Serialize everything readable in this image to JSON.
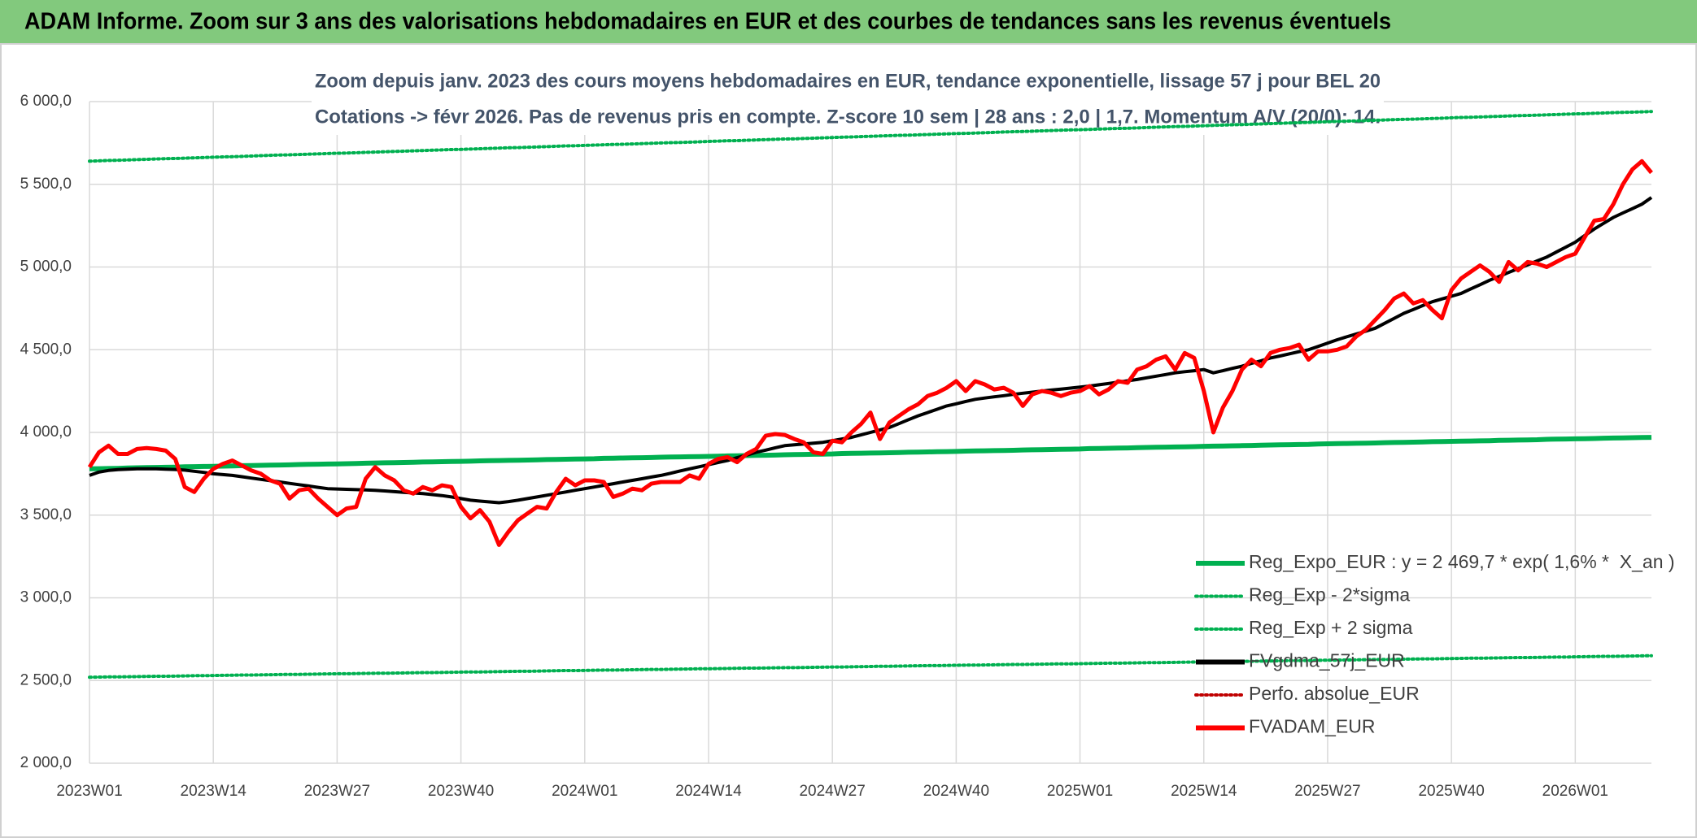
{
  "chart_data": {
    "type": "line",
    "header": "ADAM Informe. Zoom sur 3 ans des valorisations hebdomadaires en EUR et des courbes de tendances sans les revenus éventuels",
    "title": "Zoom depuis janv. 2023 des cours moyens hebdomadaires en EUR, tendance exponentielle, lissage 57 j pour BEL 20",
    "subtitle": "Cotations -> févr 2026. Pas de revenus pris en compte. Z-score 10 sem | 28 ans : 2,0 | 1,7. Momentum A/V (20/0): 14.",
    "categories": [
      "2023W01",
      null,
      null,
      null,
      null,
      null,
      null,
      null,
      null,
      null,
      null,
      null,
      null,
      "2023W14",
      null,
      null,
      null,
      null,
      null,
      null,
      null,
      null,
      null,
      null,
      null,
      null,
      "2023W27",
      null,
      null,
      null,
      null,
      null,
      null,
      null,
      null,
      null,
      null,
      null,
      null,
      "2023W40",
      null,
      null,
      null,
      null,
      null,
      null,
      null,
      null,
      null,
      null,
      null,
      null,
      "2024W01",
      null,
      null,
      null,
      null,
      null,
      null,
      null,
      null,
      null,
      null,
      null,
      null,
      "2024W14",
      null,
      null,
      null,
      null,
      null,
      null,
      null,
      null,
      null,
      null,
      null,
      null,
      "2024W27",
      null,
      null,
      null,
      null,
      null,
      null,
      null,
      null,
      null,
      null,
      null,
      null,
      "2024W40",
      null,
      null,
      null,
      null,
      null,
      null,
      null,
      null,
      null,
      null,
      null,
      null,
      "2025W01",
      null,
      null,
      null,
      null,
      null,
      null,
      null,
      null,
      null,
      null,
      null,
      null,
      "2025W14",
      null,
      null,
      null,
      null,
      null,
      null,
      null,
      null,
      null,
      null,
      null,
      null,
      "2025W27",
      null,
      null,
      null,
      null,
      null,
      null,
      null,
      null,
      null,
      null,
      null,
      null,
      "2025W40",
      null,
      null,
      null,
      null,
      null,
      null,
      null,
      null,
      null,
      null,
      null,
      null,
      "2026W01",
      null,
      null,
      null,
      null,
      null,
      null,
      null,
      null
    ],
    "ylim": [
      2000,
      6000
    ],
    "yticks": [
      {
        "value": 2000,
        "label": "2 000,0"
      },
      {
        "value": 2500,
        "label": "2 500,0"
      },
      {
        "value": 3000,
        "label": "3 000,0"
      },
      {
        "value": 3500,
        "label": "3 500,0"
      },
      {
        "value": 4000,
        "label": "4 000,0"
      },
      {
        "value": 4500,
        "label": "4 500,0"
      },
      {
        "value": 5000,
        "label": "5 000,0"
      },
      {
        "value": 5500,
        "label": "5 500,0"
      },
      {
        "value": 6000,
        "label": "6 000,0"
      }
    ],
    "grid": true,
    "legend": "lower right",
    "series": [
      {
        "name": "Reg_Expo_EUR : y = 2 469,7 * exp( 1,6% *  X_an )",
        "color": "#00b050",
        "style": "solid",
        "values": [
          3780,
          3781,
          3782,
          3783,
          3785,
          3786,
          3787,
          3788,
          3789,
          3790,
          3792,
          3793,
          3794,
          3795,
          3796,
          3797,
          3799,
          3800,
          3801,
          3802,
          3803,
          3804,
          3806,
          3807,
          3808,
          3809,
          3810,
          3811,
          3812,
          3814,
          3815,
          3816,
          3817,
          3818,
          3819,
          3821,
          3822,
          3823,
          3824,
          3825,
          3826,
          3828,
          3829,
          3830,
          3831,
          3832,
          3833,
          3834,
          3836,
          3837,
          3838,
          3839,
          3840,
          3841,
          3843,
          3844,
          3845,
          3846,
          3847,
          3848,
          3850,
          3851,
          3852,
          3853,
          3854,
          3855,
          3856,
          3858,
          3859,
          3860,
          3861,
          3862,
          3863,
          3865,
          3866,
          3867,
          3868,
          3869,
          3870,
          3872,
          3873,
          3874,
          3875,
          3876,
          3877,
          3878,
          3880,
          3881,
          3882,
          3883,
          3884,
          3885,
          3887,
          3888,
          3889,
          3890,
          3891,
          3892,
          3894,
          3895,
          3896,
          3897,
          3898,
          3899,
          3900,
          3902,
          3903,
          3904,
          3905,
          3906,
          3908,
          3909,
          3910,
          3911,
          3912,
          3913,
          3914,
          3916,
          3917,
          3918,
          3919,
          3920,
          3921,
          3923,
          3924,
          3925,
          3926,
          3927,
          3928,
          3930,
          3931,
          3932,
          3933,
          3934,
          3935,
          3936,
          3938,
          3939,
          3940,
          3941,
          3942,
          3944,
          3945,
          3946,
          3947,
          3948,
          3949,
          3950,
          3952,
          3953,
          3954,
          3955,
          3956,
          3958,
          3959,
          3960,
          3961,
          3962,
          3963,
          3965,
          3966,
          3967,
          3968,
          3969,
          3970
        ]
      },
      {
        "name": "Reg_Exp - 2*sigma",
        "color": "#00b050",
        "style": "dotted",
        "values": [
          2520,
          2521,
          2522,
          2522,
          2523,
          2524,
          2525,
          2526,
          2526,
          2527,
          2528,
          2529,
          2529,
          2530,
          2531,
          2532,
          2533,
          2533,
          2534,
          2535,
          2536,
          2537,
          2537,
          2538,
          2539,
          2540,
          2541,
          2541,
          2542,
          2543,
          2544,
          2544,
          2545,
          2546,
          2547,
          2548,
          2548,
          2549,
          2550,
          2551,
          2552,
          2552,
          2553,
          2554,
          2555,
          2556,
          2556,
          2557,
          2558,
          2559,
          2560,
          2560,
          2561,
          2562,
          2563,
          2563,
          2564,
          2565,
          2566,
          2567,
          2567,
          2568,
          2569,
          2570,
          2571,
          2571,
          2572,
          2573,
          2574,
          2575,
          2575,
          2576,
          2577,
          2578,
          2578,
          2579,
          2580,
          2581,
          2582,
          2582,
          2583,
          2584,
          2585,
          2586,
          2586,
          2587,
          2588,
          2589,
          2590,
          2590,
          2591,
          2592,
          2593,
          2593,
          2594,
          2595,
          2596,
          2597,
          2597,
          2598,
          2599,
          2600,
          2601,
          2601,
          2602,
          2603,
          2604,
          2605,
          2605,
          2606,
          2607,
          2608,
          2608,
          2609,
          2610,
          2611,
          2612,
          2612,
          2613,
          2614,
          2615,
          2616,
          2616,
          2617,
          2618,
          2619,
          2620,
          2620,
          2621,
          2622,
          2623,
          2623,
          2624,
          2625,
          2626,
          2627,
          2627,
          2628,
          2629,
          2630,
          2631,
          2631,
          2632,
          2633,
          2634,
          2635,
          2635,
          2636,
          2637,
          2638,
          2639,
          2639,
          2640,
          2641,
          2642,
          2642,
          2643,
          2644,
          2645,
          2646,
          2646,
          2647,
          2648,
          2649,
          2650
        ]
      },
      {
        "name": "Reg_Exp + 2 sigma",
        "color": "#00b050",
        "style": "dotted",
        "values": [
          5640,
          5642,
          5644,
          5645,
          5647,
          5649,
          5651,
          5653,
          5655,
          5656,
          5658,
          5660,
          5662,
          5664,
          5666,
          5667,
          5669,
          5671,
          5673,
          5675,
          5677,
          5678,
          5680,
          5682,
          5684,
          5686,
          5688,
          5689,
          5691,
          5693,
          5695,
          5697,
          5699,
          5700,
          5702,
          5704,
          5706,
          5708,
          5710,
          5711,
          5713,
          5715,
          5717,
          5719,
          5721,
          5722,
          5724,
          5726,
          5728,
          5730,
          5732,
          5733,
          5735,
          5737,
          5739,
          5741,
          5742,
          5744,
          5746,
          5748,
          5750,
          5752,
          5753,
          5755,
          5757,
          5759,
          5761,
          5763,
          5764,
          5766,
          5768,
          5770,
          5772,
          5774,
          5775,
          5777,
          5779,
          5781,
          5783,
          5785,
          5786,
          5788,
          5790,
          5792,
          5794,
          5796,
          5797,
          5799,
          5801,
          5803,
          5805,
          5807,
          5808,
          5810,
          5812,
          5814,
          5816,
          5818,
          5819,
          5821,
          5823,
          5825,
          5827,
          5829,
          5830,
          5832,
          5834,
          5836,
          5838,
          5839,
          5841,
          5843,
          5845,
          5847,
          5849,
          5850,
          5852,
          5854,
          5856,
          5858,
          5860,
          5861,
          5863,
          5865,
          5867,
          5869,
          5871,
          5872,
          5874,
          5876,
          5878,
          5880,
          5882,
          5883,
          5885,
          5887,
          5889,
          5891,
          5893,
          5894,
          5896,
          5898,
          5900,
          5902,
          5904,
          5905,
          5907,
          5909,
          5911,
          5913,
          5915,
          5916,
          5918,
          5920,
          5922,
          5924,
          5926,
          5927,
          5929,
          5931,
          5933,
          5935,
          5936,
          5938,
          5940
        ]
      },
      {
        "name": "FVgdma_57j_EUR",
        "color": "#000000",
        "style": "solid",
        "values": [
          3740,
          3760,
          3770,
          3775,
          3778,
          3780,
          3780,
          3780,
          3778,
          3776,
          3772,
          3765,
          3758,
          3750,
          3745,
          3740,
          3732,
          3724,
          3716,
          3708,
          3700,
          3692,
          3684,
          3676,
          3668,
          3660,
          3658,
          3656,
          3654,
          3652,
          3650,
          3646,
          3642,
          3638,
          3634,
          3630,
          3624,
          3618,
          3610,
          3600,
          3590,
          3585,
          3580,
          3575,
          3582,
          3590,
          3600,
          3610,
          3620,
          3630,
          3640,
          3650,
          3660,
          3670,
          3680,
          3690,
          3700,
          3710,
          3720,
          3730,
          3740,
          3753,
          3767,
          3780,
          3792,
          3805,
          3818,
          3830,
          3847,
          3863,
          3880,
          3893,
          3907,
          3920,
          3925,
          3930,
          3935,
          3940,
          3950,
          3960,
          3970,
          3985,
          4000,
          4015,
          4030,
          4053,
          4077,
          4100,
          4120,
          4140,
          4160,
          4173,
          4187,
          4200,
          4208,
          4215,
          4222,
          4230,
          4237,
          4243,
          4250,
          4256,
          4262,
          4268,
          4274,
          4280,
          4288,
          4296,
          4304,
          4312,
          4320,
          4330,
          4340,
          4350,
          4360,
          4367,
          4373,
          4380,
          4360,
          4373,
          4387,
          4400,
          4417,
          4433,
          4450,
          4462,
          4475,
          4488,
          4500,
          4520,
          4540,
          4560,
          4578,
          4595,
          4612,
          4630,
          4660,
          4690,
          4720,
          4743,
          4767,
          4790,
          4807,
          4823,
          4840,
          4867,
          4893,
          4920,
          4943,
          4967,
          4990,
          5013,
          5037,
          5060,
          5090,
          5120,
          5150,
          5190,
          5230,
          5265,
          5300,
          5327,
          5353,
          5380,
          5420
        ]
      },
      {
        "name": "Perfo. absolue_EUR",
        "color": "#c00000",
        "style": "dotted",
        "values": [
          null,
          null,
          null,
          null,
          null,
          null,
          null,
          null,
          null,
          null,
          null,
          null,
          null,
          null,
          null,
          null,
          null,
          null,
          null,
          null,
          null,
          null,
          null,
          null,
          null,
          null,
          null,
          null,
          null,
          null,
          null,
          null,
          null,
          null,
          null,
          null,
          null,
          null,
          null,
          null,
          null,
          null,
          null,
          null,
          null,
          null,
          null,
          null,
          null,
          null,
          null,
          null,
          null,
          null,
          null,
          null,
          null,
          null,
          null,
          null,
          null,
          null,
          null,
          null,
          null,
          null,
          null,
          null,
          null,
          null,
          null,
          null,
          null,
          null,
          null,
          null,
          null,
          null,
          null,
          null,
          null,
          null,
          null,
          null,
          null,
          null,
          null,
          null,
          null,
          null,
          null,
          null,
          null,
          null,
          null,
          null,
          null,
          null,
          null,
          null,
          null,
          null,
          null,
          null,
          null,
          null,
          null,
          null,
          null,
          null,
          null,
          null,
          null,
          null,
          null,
          null,
          null,
          null,
          null,
          null,
          null,
          null,
          null,
          null,
          null,
          null,
          null,
          null,
          null,
          null,
          null,
          null,
          null,
          null,
          null,
          null,
          null,
          null,
          null,
          null,
          null,
          null,
          null,
          null,
          null,
          null,
          null,
          null,
          null,
          null,
          null,
          null,
          null,
          null,
          null,
          null,
          null,
          null,
          null,
          null,
          null,
          null,
          null,
          null,
          null
        ]
      },
      {
        "name": "FVADAM_EUR",
        "color": "#ff0000",
        "style": "solid",
        "values": [
          3790,
          3880,
          3920,
          3870,
          3870,
          3900,
          3905,
          3900,
          3890,
          3840,
          3670,
          3640,
          3720,
          3780,
          3810,
          3830,
          3800,
          3770,
          3750,
          3710,
          3690,
          3600,
          3650,
          3660,
          3600,
          3550,
          3500,
          3540,
          3550,
          3720,
          3790,
          3740,
          3710,
          3650,
          3630,
          3670,
          3650,
          3680,
          3670,
          3550,
          3480,
          3530,
          3460,
          3320,
          3400,
          3470,
          3510,
          3550,
          3540,
          3640,
          3720,
          3680,
          3710,
          3710,
          3700,
          3610,
          3630,
          3660,
          3650,
          3690,
          3700,
          3700,
          3700,
          3740,
          3720,
          3810,
          3840,
          3850,
          3820,
          3870,
          3900,
          3980,
          3990,
          3985,
          3960,
          3940,
          3880,
          3870,
          3950,
          3940,
          4000,
          4050,
          4120,
          3960,
          4060,
          4100,
          4140,
          4170,
          4220,
          4240,
          4270,
          4310,
          4250,
          4310,
          4290,
          4260,
          4270,
          4240,
          4160,
          4230,
          4250,
          4240,
          4220,
          4240,
          4250,
          4280,
          4230,
          4260,
          4310,
          4300,
          4380,
          4400,
          4440,
          4460,
          4380,
          4480,
          4450,
          4250,
          4000,
          4150,
          4250,
          4380,
          4440,
          4400,
          4480,
          4500,
          4510,
          4530,
          4440,
          4490,
          4490,
          4500,
          4520,
          4580,
          4620,
          4680,
          4740,
          4810,
          4840,
          4780,
          4800,
          4740,
          4690,
          4860,
          4930,
          4970,
          5010,
          4970,
          4910,
          5030,
          4980,
          5030,
          5020,
          5000,
          5030,
          5060,
          5080,
          5180,
          5280,
          5290,
          5380,
          5500,
          5590,
          5640,
          5570
        ]
      }
    ]
  }
}
